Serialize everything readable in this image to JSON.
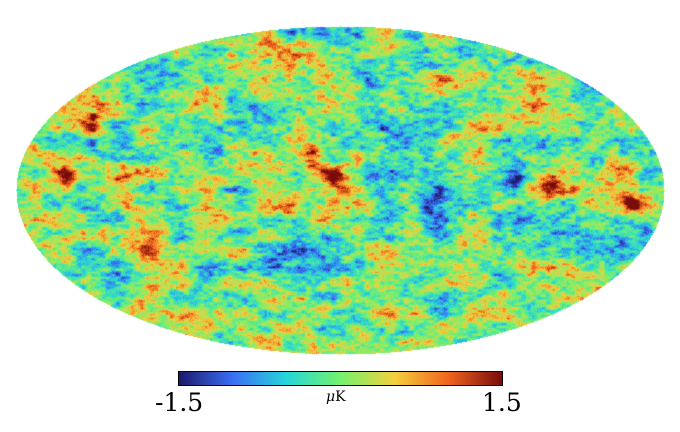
{
  "colorbar": {
    "min_label": "-1.5",
    "max_label": "1.5",
    "unit_symbol": "μ",
    "unit_letter": "K",
    "colormap": [
      "#1c1a6b",
      "#3a6ff5",
      "#26d7d9",
      "#74f26c",
      "#f4d13e",
      "#f1651f",
      "#7a0b0b"
    ]
  },
  "map": {
    "projection": "mollweide",
    "background_color": "#ffffff"
  }
}
